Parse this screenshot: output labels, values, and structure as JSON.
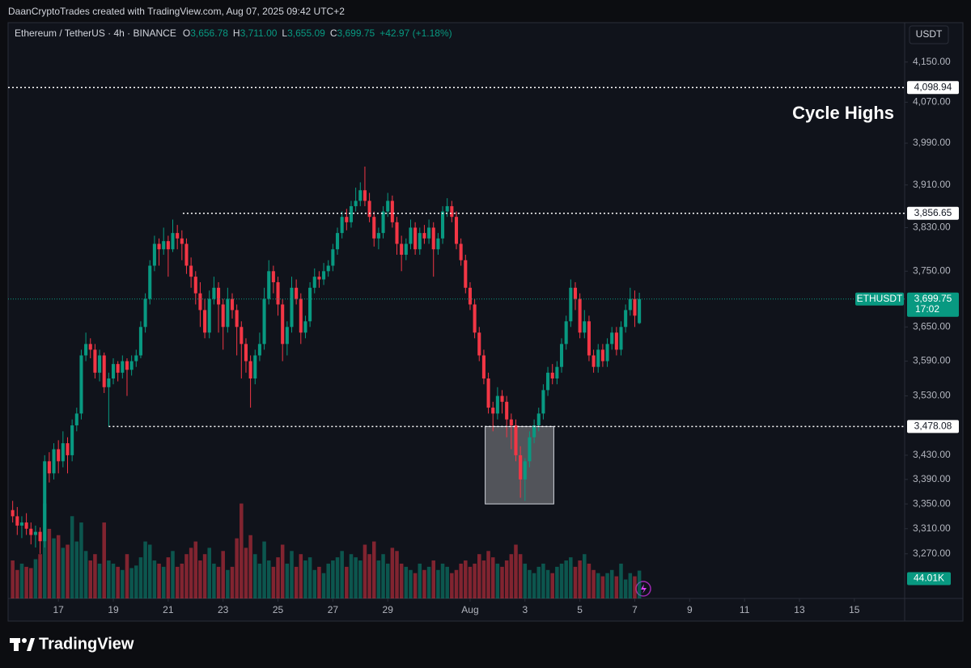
{
  "header": {
    "text": "DaanCryptoTrades created with TradingView.com, Aug 07, 2025 09:42 UTC+2"
  },
  "footer": {
    "brand": "TradingView"
  },
  "chart_data": {
    "type": "candlestick",
    "legend": {
      "symbol": "Ethereum / TetherUS · 4h · BINANCE",
      "fields": [
        {
          "name": "O",
          "value": "3,656.78"
        },
        {
          "name": "H",
          "value": "3,711.00"
        },
        {
          "name": "L",
          "value": "3,655.09"
        },
        {
          "name": "C",
          "value": "3,699.75"
        }
      ],
      "change": "+42.97 (+1.18%)"
    },
    "currency": "USDT",
    "log_scale": true,
    "grid": false,
    "ylim": [
      3200,
      4230
    ],
    "yticks": [
      {
        "value": 4150,
        "label": "4,150.00"
      },
      {
        "value": 4070,
        "label": "4,070.00"
      },
      {
        "value": 3990,
        "label": "3,990.00"
      },
      {
        "value": 3910,
        "label": "3,910.00"
      },
      {
        "value": 3830,
        "label": "3,830.00"
      },
      {
        "value": 3750,
        "label": "3,750.00"
      },
      {
        "value": 3650,
        "label": "3,650.00"
      },
      {
        "value": 3590,
        "label": "3,590.00"
      },
      {
        "value": 3530,
        "label": "3,530.00"
      },
      {
        "value": 3430,
        "label": "3,430.00"
      },
      {
        "value": 3390,
        "label": "3,390.00"
      },
      {
        "value": 3350,
        "label": "3,350.00"
      },
      {
        "value": 3310,
        "label": "3,310.00"
      },
      {
        "value": 3270,
        "label": "3,270.00"
      }
    ],
    "xlim": [
      -1,
      195
    ],
    "xticks": [
      {
        "value": 10,
        "label": "17"
      },
      {
        "value": 22,
        "label": "19"
      },
      {
        "value": 34,
        "label": "21"
      },
      {
        "value": 46,
        "label": "23"
      },
      {
        "value": 58,
        "label": "25"
      },
      {
        "value": 70,
        "label": "27"
      },
      {
        "value": 82,
        "label": "29"
      },
      {
        "value": 100,
        "label": "Aug"
      },
      {
        "value": 112,
        "label": "3"
      },
      {
        "value": 124,
        "label": "5"
      },
      {
        "value": 136,
        "label": "7"
      },
      {
        "value": 148,
        "label": "9"
      },
      {
        "value": 160,
        "label": "11"
      },
      {
        "value": 172,
        "label": "13"
      },
      {
        "value": 184,
        "label": "15"
      }
    ],
    "series": [
      {
        "name": "ETHUSDT",
        "up_color": "#089981",
        "down_color": "#f23645",
        "ohlc": [
          [
            3340,
            3355,
            3320,
            3330
          ],
          [
            3330,
            3345,
            3300,
            3315
          ],
          [
            3315,
            3330,
            3295,
            3320
          ],
          [
            3320,
            3335,
            3300,
            3310
          ],
          [
            3310,
            3320,
            3285,
            3300
          ],
          [
            3300,
            3315,
            3280,
            3305
          ],
          [
            3305,
            3312,
            3270,
            3290
          ],
          [
            3290,
            3430,
            3280,
            3420
          ],
          [
            3420,
            3435,
            3385,
            3400
          ],
          [
            3400,
            3450,
            3390,
            3440
          ],
          [
            3440,
            3455,
            3400,
            3420
          ],
          [
            3420,
            3470,
            3410,
            3450
          ],
          [
            3450,
            3460,
            3400,
            3430
          ],
          [
            3430,
            3490,
            3420,
            3480
          ],
          [
            3480,
            3510,
            3470,
            3500
          ],
          [
            3500,
            3610,
            3490,
            3600
          ],
          [
            3600,
            3640,
            3590,
            3620
          ],
          [
            3620,
            3630,
            3595,
            3610
          ],
          [
            3610,
            3620,
            3560,
            3570
          ],
          [
            3570,
            3610,
            3555,
            3600
          ],
          [
            3600,
            3605,
            3535,
            3545
          ],
          [
            3545,
            3570,
            3478,
            3560
          ],
          [
            3560,
            3595,
            3550,
            3585
          ],
          [
            3585,
            3590,
            3555,
            3570
          ],
          [
            3570,
            3600,
            3560,
            3590
          ],
          [
            3590,
            3595,
            3530,
            3575
          ],
          [
            3575,
            3600,
            3565,
            3590
          ],
          [
            3590,
            3610,
            3580,
            3600
          ],
          [
            3600,
            3660,
            3595,
            3650
          ],
          [
            3650,
            3710,
            3640,
            3700
          ],
          [
            3700,
            3770,
            3690,
            3760
          ],
          [
            3760,
            3815,
            3750,
            3800
          ],
          [
            3800,
            3810,
            3760,
            3790
          ],
          [
            3790,
            3830,
            3780,
            3805
          ],
          [
            3805,
            3815,
            3740,
            3790
          ],
          [
            3790,
            3845,
            3785,
            3820
          ],
          [
            3820,
            3835,
            3790,
            3810
          ],
          [
            3810,
            3825,
            3770,
            3800
          ],
          [
            3800,
            3810,
            3745,
            3760
          ],
          [
            3760,
            3775,
            3720,
            3740
          ],
          [
            3740,
            3750,
            3690,
            3710
          ],
          [
            3710,
            3730,
            3650,
            3680
          ],
          [
            3680,
            3700,
            3630,
            3640
          ],
          [
            3640,
            3715,
            3630,
            3700
          ],
          [
            3700,
            3740,
            3690,
            3720
          ],
          [
            3720,
            3730,
            3640,
            3690
          ],
          [
            3690,
            3700,
            3610,
            3650
          ],
          [
            3650,
            3720,
            3640,
            3700
          ],
          [
            3700,
            3710,
            3665,
            3680
          ],
          [
            3680,
            3690,
            3600,
            3650
          ],
          [
            3650,
            3660,
            3560,
            3620
          ],
          [
            3620,
            3630,
            3570,
            3590
          ],
          [
            3590,
            3600,
            3510,
            3560
          ],
          [
            3560,
            3610,
            3550,
            3600
          ],
          [
            3600,
            3640,
            3590,
            3620
          ],
          [
            3620,
            3720,
            3610,
            3700
          ],
          [
            3700,
            3770,
            3690,
            3750
          ],
          [
            3750,
            3760,
            3710,
            3730
          ],
          [
            3730,
            3740,
            3670,
            3690
          ],
          [
            3690,
            3700,
            3590,
            3620
          ],
          [
            3620,
            3660,
            3600,
            3650
          ],
          [
            3650,
            3740,
            3640,
            3720
          ],
          [
            3720,
            3735,
            3690,
            3700
          ],
          [
            3700,
            3710,
            3620,
            3640
          ],
          [
            3640,
            3670,
            3630,
            3660
          ],
          [
            3660,
            3730,
            3650,
            3720
          ],
          [
            3720,
            3755,
            3710,
            3740
          ],
          [
            3740,
            3750,
            3720,
            3735
          ],
          [
            3735,
            3765,
            3725,
            3750
          ],
          [
            3750,
            3770,
            3740,
            3760
          ],
          [
            3760,
            3800,
            3750,
            3790
          ],
          [
            3790,
            3830,
            3780,
            3820
          ],
          [
            3820,
            3860,
            3810,
            3850
          ],
          [
            3850,
            3865,
            3825,
            3840
          ],
          [
            3840,
            3880,
            3830,
            3870
          ],
          [
            3870,
            3905,
            3860,
            3880
          ],
          [
            3880,
            3915,
            3870,
            3900
          ],
          [
            3900,
            3945,
            3870,
            3880
          ],
          [
            3880,
            3895,
            3840,
            3850
          ],
          [
            3850,
            3860,
            3795,
            3810
          ],
          [
            3810,
            3830,
            3790,
            3820
          ],
          [
            3820,
            3870,
            3810,
            3860
          ],
          [
            3860,
            3895,
            3850,
            3880
          ],
          [
            3880,
            3890,
            3830,
            3840
          ],
          [
            3840,
            3850,
            3780,
            3800
          ],
          [
            3800,
            3815,
            3750,
            3780
          ],
          [
            3780,
            3810,
            3770,
            3800
          ],
          [
            3800,
            3845,
            3790,
            3830
          ],
          [
            3830,
            3840,
            3780,
            3790
          ],
          [
            3790,
            3830,
            3780,
            3820
          ],
          [
            3820,
            3835,
            3800,
            3810
          ],
          [
            3810,
            3845,
            3800,
            3830
          ],
          [
            3830,
            3840,
            3740,
            3790
          ],
          [
            3790,
            3820,
            3780,
            3810
          ],
          [
            3810,
            3870,
            3800,
            3860
          ],
          [
            3860,
            3885,
            3850,
            3870
          ],
          [
            3870,
            3880,
            3840,
            3850
          ],
          [
            3850,
            3860,
            3790,
            3800
          ],
          [
            3800,
            3810,
            3760,
            3770
          ],
          [
            3770,
            3780,
            3710,
            3720
          ],
          [
            3720,
            3730,
            3680,
            3690
          ],
          [
            3690,
            3700,
            3630,
            3640
          ],
          [
            3640,
            3650,
            3590,
            3600
          ],
          [
            3600,
            3610,
            3550,
            3560
          ],
          [
            3560,
            3570,
            3500,
            3510
          ],
          [
            3510,
            3520,
            3470,
            3500
          ],
          [
            3500,
            3545,
            3490,
            3530
          ],
          [
            3530,
            3540,
            3500,
            3520
          ],
          [
            3520,
            3530,
            3460,
            3490
          ],
          [
            3490,
            3500,
            3440,
            3480
          ],
          [
            3480,
            3490,
            3420,
            3430
          ],
          [
            3430,
            3445,
            3360,
            3390
          ],
          [
            3390,
            3425,
            3355,
            3420
          ],
          [
            3420,
            3470,
            3410,
            3460
          ],
          [
            3460,
            3490,
            3450,
            3480
          ],
          [
            3480,
            3510,
            3470,
            3500
          ],
          [
            3500,
            3550,
            3490,
            3540
          ],
          [
            3540,
            3580,
            3530,
            3570
          ],
          [
            3570,
            3585,
            3550,
            3560
          ],
          [
            3560,
            3590,
            3550,
            3580
          ],
          [
            3580,
            3630,
            3570,
            3620
          ],
          [
            3620,
            3670,
            3610,
            3660
          ],
          [
            3660,
            3735,
            3650,
            3720
          ],
          [
            3720,
            3730,
            3680,
            3700
          ],
          [
            3700,
            3710,
            3630,
            3640
          ],
          [
            3640,
            3680,
            3630,
            3660
          ],
          [
            3660,
            3670,
            3590,
            3600
          ],
          [
            3600,
            3610,
            3570,
            3580
          ],
          [
            3580,
            3620,
            3570,
            3610
          ],
          [
            3610,
            3620,
            3580,
            3590
          ],
          [
            3590,
            3630,
            3580,
            3620
          ],
          [
            3620,
            3650,
            3610,
            3640
          ],
          [
            3640,
            3650,
            3600,
            3610
          ],
          [
            3610,
            3660,
            3600,
            3650
          ],
          [
            3650,
            3690,
            3640,
            3680
          ],
          [
            3680,
            3720,
            3670,
            3700
          ],
          [
            3700,
            3715,
            3650,
            3670
          ],
          [
            3656.78,
            3711,
            3655.09,
            3699.75
          ]
        ]
      }
    ],
    "volume": {
      "up_color": "rgba(8,153,129,0.5)",
      "down_color": "rgba(242,54,69,0.5)",
      "vlim": [
        0,
        230
      ],
      "last_label": "44.01K",
      "values": [
        60,
        45,
        55,
        50,
        48,
        62,
        70,
        150,
        110,
        95,
        100,
        80,
        85,
        130,
        90,
        120,
        75,
        60,
        70,
        55,
        120,
        60,
        55,
        50,
        45,
        70,
        48,
        52,
        65,
        90,
        85,
        60,
        55,
        50,
        65,
        75,
        50,
        55,
        70,
        80,
        90,
        60,
        70,
        80,
        55,
        50,
        75,
        45,
        50,
        95,
        150,
        80,
        100,
        70,
        55,
        90,
        60,
        50,
        65,
        85,
        55,
        75,
        50,
        70,
        60,
        65,
        45,
        50,
        40,
        55,
        60,
        65,
        75,
        50,
        70,
        65,
        60,
        85,
        70,
        90,
        60,
        70,
        55,
        80,
        75,
        55,
        50,
        45,
        40,
        55,
        45,
        50,
        60,
        45,
        55,
        50,
        40,
        45,
        55,
        60,
        50,
        55,
        70,
        60,
        75,
        65,
        55,
        50,
        60,
        70,
        85,
        70,
        55,
        45,
        40,
        50,
        55,
        45,
        40,
        50,
        55,
        60,
        65,
        50,
        60,
        70,
        55,
        45,
        40,
        35,
        40,
        45,
        35,
        55,
        30,
        40,
        35,
        44.01
      ]
    },
    "last_price": {
      "value": 3699.75,
      "label": "3,699.75",
      "countdown": "17:02"
    },
    "levels": [
      {
        "value": 4098.94,
        "label": "4,098.94",
        "from": -1
      },
      {
        "value": 3856.65,
        "label": "3,856.65",
        "from": 37.2
      },
      {
        "value": 3478.08,
        "label": "3,478.08",
        "from": 21
      }
    ],
    "zone": {
      "x": [
        103.3,
        118.3
      ],
      "y": [
        3350,
        3478.08
      ]
    },
    "annotations": [
      {
        "text": "Cycle Highs"
      }
    ]
  }
}
